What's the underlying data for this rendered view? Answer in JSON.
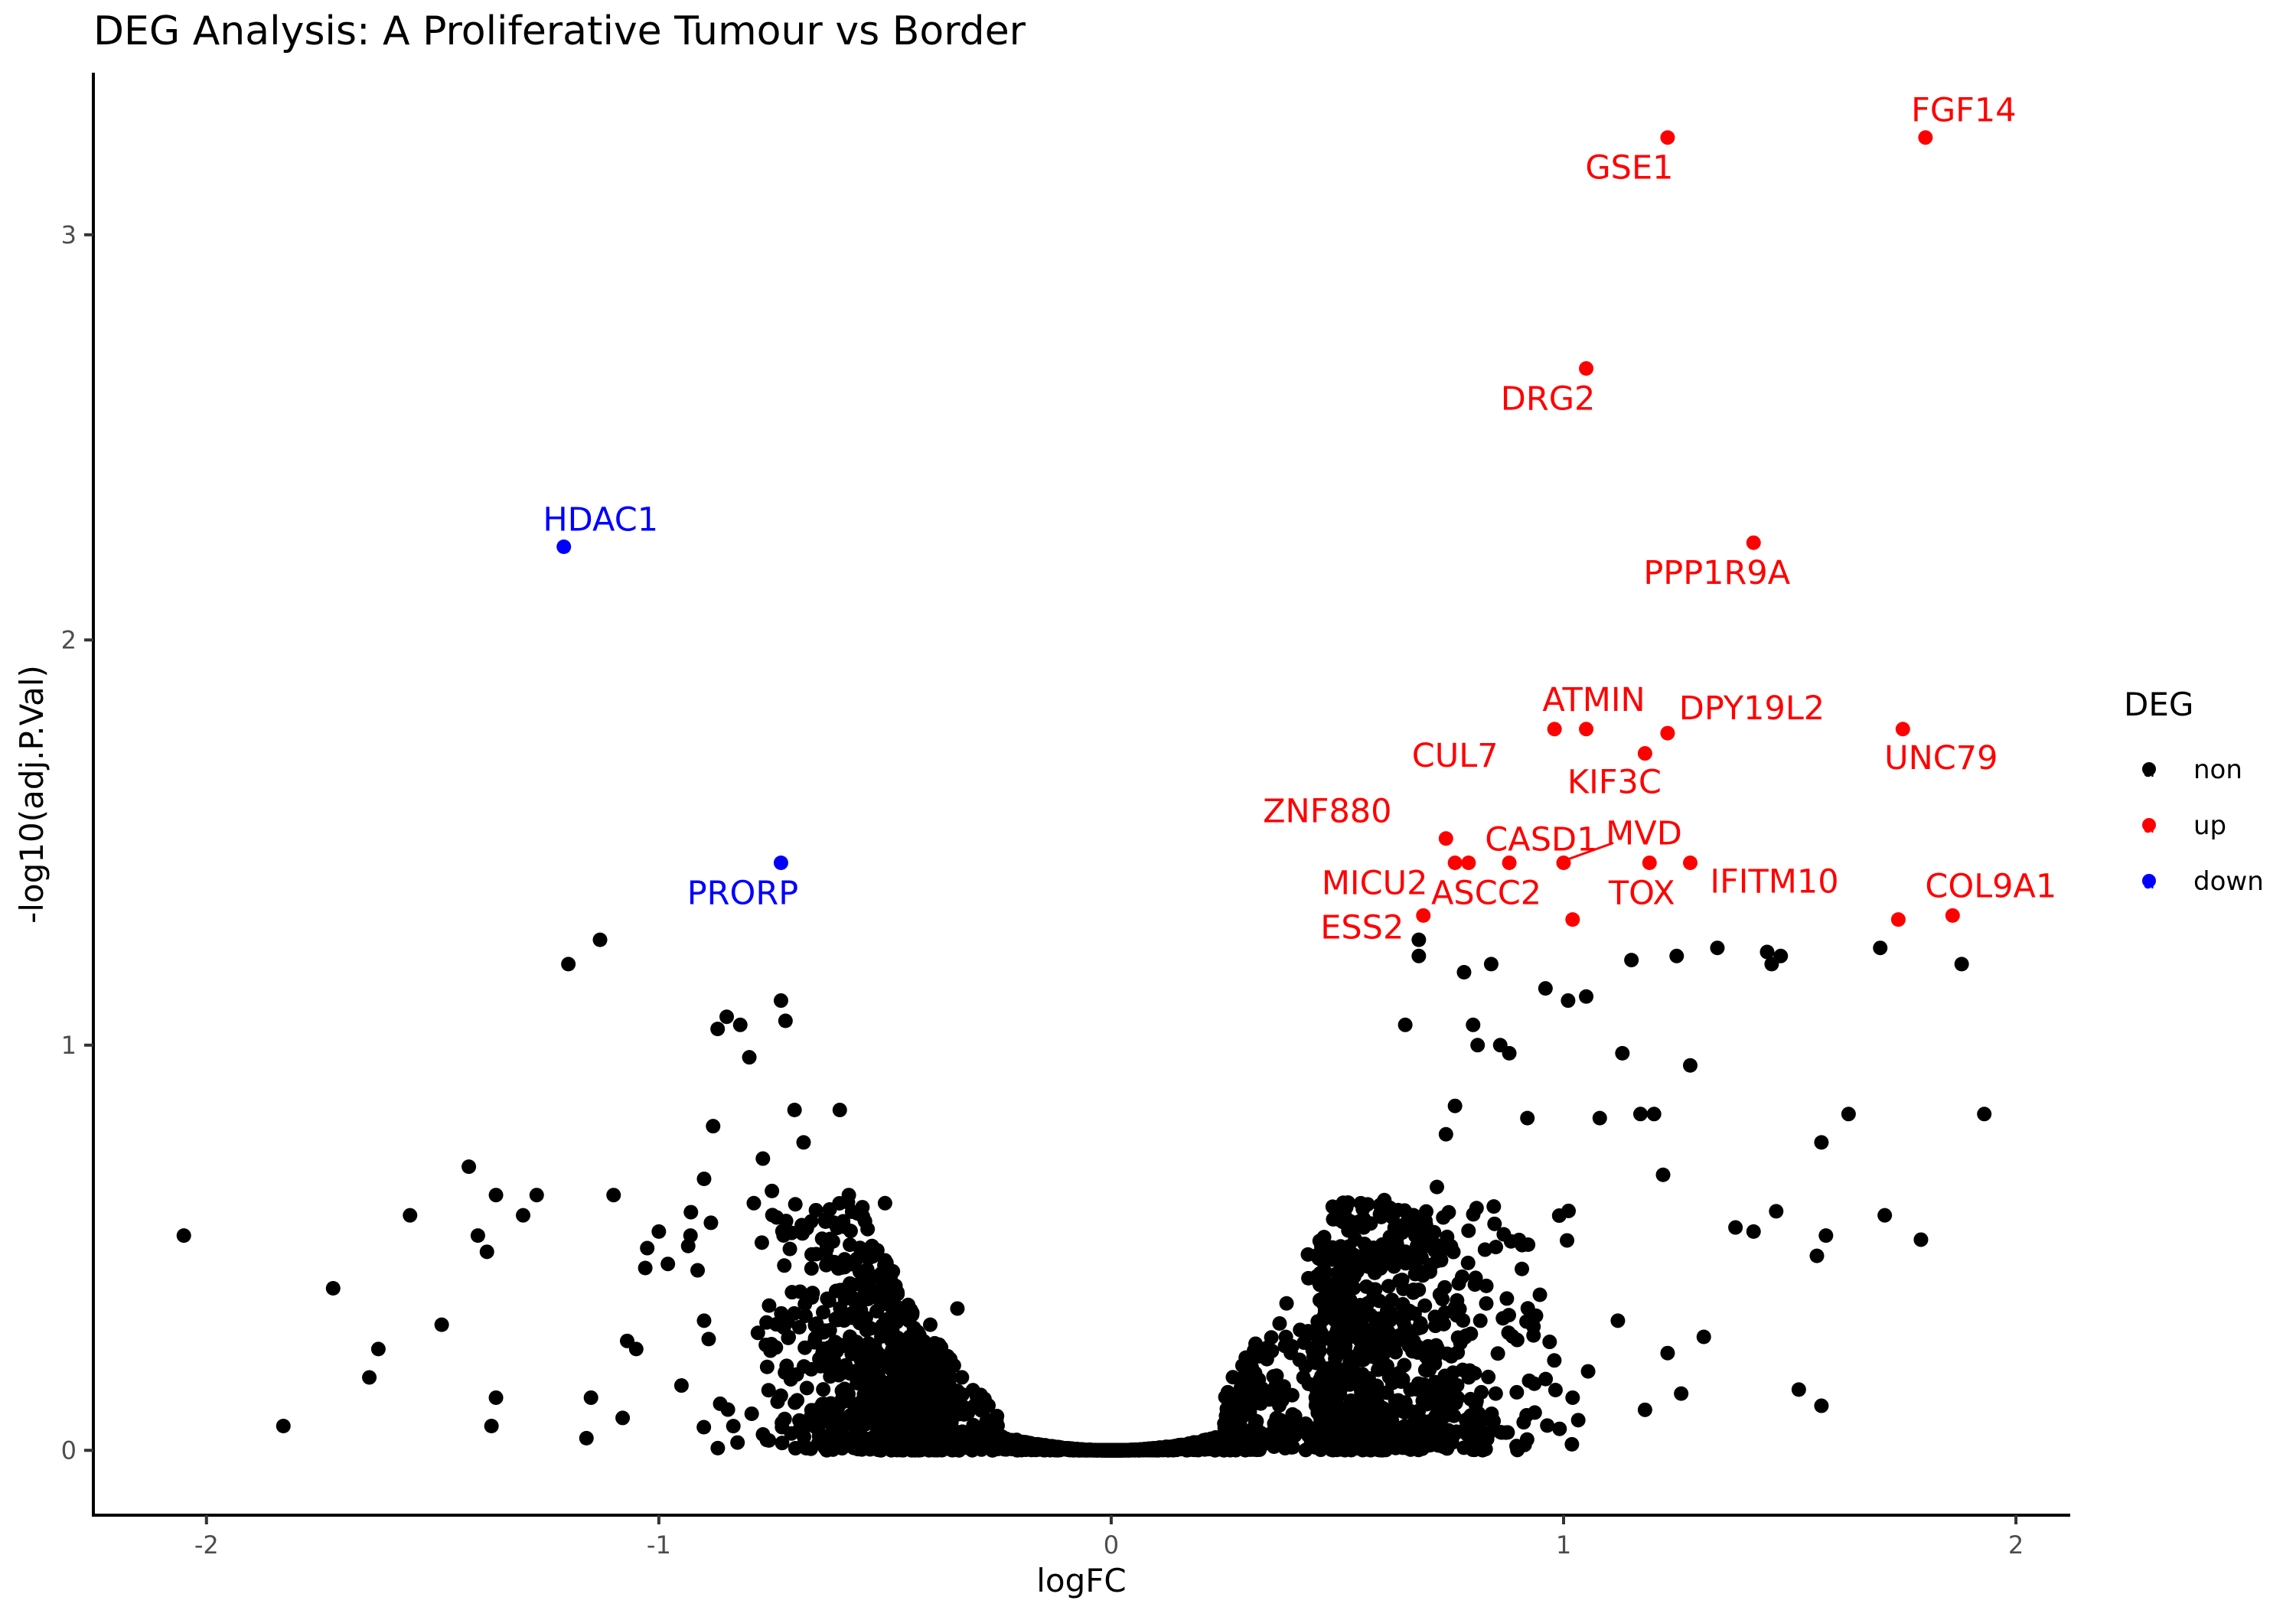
{
  "chart_data": {
    "type": "scatter",
    "title": "DEG Analysis: A Proliferative Tumour vs Border",
    "xlabel": "logFC",
    "ylabel": "-log10(adj.P.Val)",
    "xlim": [
      -2.25,
      2.12
    ],
    "ylim": [
      -0.16,
      3.4
    ],
    "xticks": [
      -2,
      -1,
      0,
      1,
      2
    ],
    "yticks": [
      0,
      1,
      2,
      3
    ],
    "grid": false,
    "legend": {
      "title": "DEG",
      "position": "right",
      "entries": [
        {
          "key": "a",
          "label": "non",
          "color": "#000000"
        },
        {
          "key": "a",
          "label": "up",
          "color": "#ff0000"
        },
        {
          "key": "a",
          "label": "down",
          "color": "#0000ff"
        }
      ]
    },
    "colors": {
      "non": "#000000",
      "up": "#ff0000",
      "down": "#0000ff"
    },
    "labeled_points": [
      {
        "gene": "FGF14",
        "x": 1.8,
        "y": 3.24,
        "group": "up"
      },
      {
        "gene": "GSE1",
        "x": 1.23,
        "y": 3.24,
        "group": "up"
      },
      {
        "gene": "DRG2",
        "x": 1.05,
        "y": 2.67,
        "group": "up"
      },
      {
        "gene": "PPP1R9A",
        "x": 1.42,
        "y": 2.24,
        "group": "up"
      },
      {
        "gene": "HDAC1",
        "x": -1.21,
        "y": 2.23,
        "group": "down"
      },
      {
        "gene": "ATMIN",
        "x": 1.05,
        "y": 1.78,
        "group": "up"
      },
      {
        "gene": "CUL7",
        "x": 0.98,
        "y": 1.78,
        "group": "up"
      },
      {
        "gene": "DPY19L2",
        "x": 1.23,
        "y": 1.77,
        "group": "up"
      },
      {
        "gene": "UNC79",
        "x": 1.75,
        "y": 1.78,
        "group": "up"
      },
      {
        "gene": "KIF3C",
        "x": 1.18,
        "y": 1.72,
        "group": "up"
      },
      {
        "gene": "ZNF880",
        "x": 0.74,
        "y": 1.51,
        "group": "up"
      },
      {
        "gene": "CASD1",
        "x": 0.79,
        "y": 1.45,
        "group": "up"
      },
      {
        "gene": "MVD",
        "x": 1.0,
        "y": 1.45,
        "group": "up"
      },
      {
        "gene": "MICU2",
        "x": 0.76,
        "y": 1.45,
        "group": "up"
      },
      {
        "gene": "ASCC2",
        "x": 0.88,
        "y": 1.45,
        "group": "up"
      },
      {
        "gene": "TOX",
        "x": 1.19,
        "y": 1.45,
        "group": "up"
      },
      {
        "gene": "IFITM10",
        "x": 1.28,
        "y": 1.45,
        "group": "up"
      },
      {
        "gene": "PRORP",
        "x": -0.73,
        "y": 1.45,
        "group": "down"
      },
      {
        "gene": "COL9A1",
        "x": 1.86,
        "y": 1.32,
        "group": "up"
      },
      {
        "gene": "ESS2",
        "x": 0.69,
        "y": 1.32,
        "group": "up"
      },
      {
        "gene": "",
        "x": 1.02,
        "y": 1.31,
        "group": "up"
      },
      {
        "gene": "",
        "x": 1.74,
        "y": 1.31,
        "group": "up"
      }
    ],
    "background_points": [
      [
        -2.05,
        0.53
      ],
      [
        -1.83,
        0.06
      ],
      [
        -1.72,
        0.4
      ],
      [
        -1.64,
        0.18
      ],
      [
        -1.62,
        0.25
      ],
      [
        -1.55,
        0.58
      ],
      [
        -1.48,
        0.31
      ],
      [
        -1.42,
        0.7
      ],
      [
        -1.4,
        0.53
      ],
      [
        -1.38,
        0.49
      ],
      [
        -1.37,
        0.06
      ],
      [
        -1.36,
        0.13
      ],
      [
        -1.36,
        0.63
      ],
      [
        -1.3,
        0.58
      ],
      [
        -1.27,
        0.63
      ],
      [
        -1.2,
        1.2
      ],
      [
        -1.16,
        0.03
      ],
      [
        -1.15,
        0.13
      ],
      [
        -1.13,
        1.26
      ],
      [
        -1.1,
        0.63
      ],
      [
        -1.08,
        0.08
      ],
      [
        -1.07,
        0.27
      ],
      [
        -1.05,
        0.25
      ],
      [
        -1.03,
        0.45
      ],
      [
        -1.0,
        0.54
      ],
      [
        -0.98,
        0.46
      ],
      [
        -0.95,
        0.16
      ],
      [
        -0.93,
        0.53
      ],
      [
        -0.9,
        0.67
      ],
      [
        -0.9,
        0.32
      ],
      [
        -0.88,
        0.8
      ],
      [
        -0.87,
        1.04
      ],
      [
        -0.85,
        1.07
      ],
      [
        -0.82,
        1.05
      ],
      [
        -0.8,
        0.97
      ],
      [
        -0.79,
        0.61
      ],
      [
        -0.77,
        0.72
      ],
      [
        -0.75,
        0.64
      ],
      [
        -0.73,
        1.11
      ],
      [
        -0.72,
        1.06
      ],
      [
        -0.7,
        0.84
      ],
      [
        -0.68,
        0.76
      ],
      [
        -0.6,
        0.84
      ],
      [
        -0.58,
        0.63
      ],
      [
        -0.55,
        0.6
      ],
      [
        -0.5,
        0.61
      ],
      [
        -0.4,
        0.31
      ],
      [
        -0.34,
        0.35
      ],
      [
        0.65,
        1.05
      ],
      [
        0.68,
        1.22
      ],
      [
        0.68,
        1.26
      ],
      [
        0.72,
        0.65
      ],
      [
        0.74,
        0.78
      ],
      [
        0.76,
        0.85
      ],
      [
        0.78,
        1.18
      ],
      [
        0.8,
        1.05
      ],
      [
        0.81,
        1.0
      ],
      [
        0.84,
        1.2
      ],
      [
        0.86,
        1.0
      ],
      [
        0.88,
        0.98
      ],
      [
        0.92,
        0.82
      ],
      [
        0.96,
        1.14
      ],
      [
        1.01,
        1.11
      ],
      [
        1.05,
        1.12
      ],
      [
        1.08,
        0.82
      ],
      [
        1.13,
        0.98
      ],
      [
        1.15,
        1.21
      ],
      [
        1.17,
        0.83
      ],
      [
        1.2,
        0.83
      ],
      [
        1.22,
        0.68
      ],
      [
        1.25,
        1.22
      ],
      [
        1.28,
        0.95
      ],
      [
        1.31,
        0.28
      ],
      [
        1.34,
        1.24
      ],
      [
        1.38,
        0.55
      ],
      [
        1.42,
        0.54
      ],
      [
        1.45,
        1.23
      ],
      [
        1.46,
        1.2
      ],
      [
        1.47,
        0.59
      ],
      [
        1.48,
        1.22
      ],
      [
        1.52,
        0.15
      ],
      [
        1.56,
        0.48
      ],
      [
        1.57,
        0.76
      ],
      [
        1.57,
        0.11
      ],
      [
        1.58,
        0.53
      ],
      [
        1.63,
        0.83
      ],
      [
        1.7,
        1.24
      ],
      [
        1.71,
        0.58
      ],
      [
        1.79,
        0.52
      ],
      [
        1.88,
        1.2
      ],
      [
        1.93,
        0.83
      ],
      [
        1.18,
        0.1
      ],
      [
        1.26,
        0.14
      ],
      [
        1.12,
        0.32
      ],
      [
        1.23,
        0.24
      ],
      [
        1.02,
        0.13
      ]
    ]
  }
}
